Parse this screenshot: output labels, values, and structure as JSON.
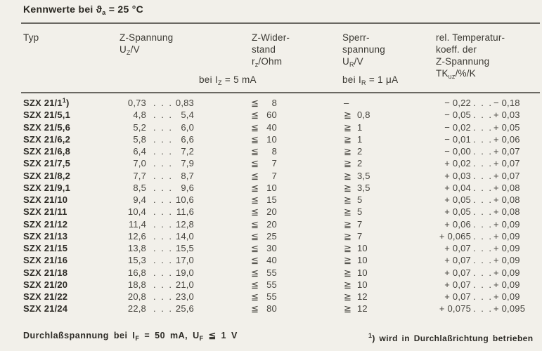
{
  "title": "Kennwerte bei ϑ_{a} = 25 °C",
  "colors": {
    "paper": "#f2f0ea",
    "ink": "#34322c",
    "rule": "#6a6862"
  },
  "table": {
    "headers": {
      "typ": [
        "Typ"
      ],
      "z_spannung": [
        "Z-Spannung",
        "U_{Z}/V"
      ],
      "z_widerstand": [
        "Z-Wider-",
        "stand",
        "r_{z}/Ohm"
      ],
      "sperrspannung": [
        "Sperr-",
        "spannung",
        "U_{R}/V"
      ],
      "temperaturkoeff": [
        "rel. Temperatur-",
        "koeff. der",
        "Z-Spannung",
        "TK_{uz}/%/K"
      ],
      "condition_iz": "bei I_{Z} = 5 mA",
      "condition_ir": "bei I_{R} = 1 μA"
    },
    "ellipsis": ". . .",
    "columns": [
      "Typ",
      "Uz min /V",
      "Uz max /V",
      "rz relation",
      "rz /Ohm",
      "UR relation",
      "UR /V",
      "TKuz min /%/K",
      "TKuz max /%/K"
    ],
    "rows": [
      [
        "SZX 21/1^{1})",
        "0,73",
        "0,83",
        "≦",
        "8",
        "–",
        "",
        "− 0,22",
        "− 0,18"
      ],
      [
        "SZX 21/5,1",
        "4,8",
        "5,4",
        "≦",
        "60",
        "≧",
        "0,8",
        "− 0,05",
        "+ 0,03"
      ],
      [
        "SZX 21/5,6",
        "5,2",
        "6,0",
        "≦",
        "40",
        "≧",
        "1",
        "− 0,02",
        "+ 0,05"
      ],
      [
        "SZX 21/6,2",
        "5,8",
        "6,6",
        "≦",
        "10",
        "≧",
        "1",
        "− 0,01",
        "+ 0,06"
      ],
      [
        "SZX 21/6,8",
        "6,4",
        "7,2",
        "≦",
        "8",
        "≧",
        "2",
        "− 0,00",
        "+ 0,07"
      ],
      [
        "SZX 21/7,5",
        "7,0",
        "7,9",
        "≦",
        "7",
        "≧",
        "2",
        "+ 0,02",
        "+ 0,07"
      ],
      [
        "SZX 21/8,2",
        "7,7",
        "8,7",
        "≦",
        "7",
        "≧",
        "3,5",
        "+ 0,03",
        "+ 0,07"
      ],
      [
        "SZX 21/9,1",
        "8,5",
        "9,6",
        "≦",
        "10",
        "≧",
        "3,5",
        "+ 0,04",
        "+ 0,08"
      ],
      [
        "SZX 21/10",
        "9,4",
        "10,6",
        "≦",
        "15",
        "≧",
        "5",
        "+ 0,05",
        "+ 0,08"
      ],
      [
        "SZX 21/11",
        "10,4",
        "11,6",
        "≦",
        "20",
        "≧",
        "5",
        "+ 0,05",
        "+ 0,08"
      ],
      [
        "SZX 21/12",
        "11,4",
        "12,8",
        "≦",
        "20",
        "≧",
        "7",
        "+ 0,06",
        "+ 0,09"
      ],
      [
        "SZX 21/13",
        "12,6",
        "14,0",
        "≦",
        "25",
        "≧",
        "7",
        "+ 0,065",
        "+ 0,09"
      ],
      [
        "SZX 21/15",
        "13,8",
        "15,5",
        "≦",
        "30",
        "≧",
        "10",
        "+ 0,07",
        "+ 0,09"
      ],
      [
        "SZX 21/16",
        "15,3",
        "17,0",
        "≦",
        "40",
        "≧",
        "10",
        "+ 0,07",
        "+ 0,09"
      ],
      [
        "SZX 21/18",
        "16,8",
        "19,0",
        "≦",
        "55",
        "≧",
        "10",
        "+ 0,07",
        "+ 0,09"
      ],
      [
        "SZX 21/20",
        "18,8",
        "21,0",
        "≦",
        "55",
        "≧",
        "10",
        "+ 0,07",
        "+ 0,09"
      ],
      [
        "SZX 21/22",
        "20,8",
        "23,0",
        "≦",
        "55",
        "≧",
        "12",
        "+ 0,07",
        "+ 0,09"
      ],
      [
        "SZX 21/24",
        "22,8",
        "25,6",
        "≦",
        "80",
        "≧",
        "12",
        "+ 0,075",
        "+ 0,095"
      ]
    ]
  },
  "footer": {
    "forward_voltage": "Durchlaßspannung bei I_{F} = 50 mA, U_{F} ≦ 1 V",
    "footnote": "^{1}) wird in Durchlaßrichtung betrieben"
  }
}
